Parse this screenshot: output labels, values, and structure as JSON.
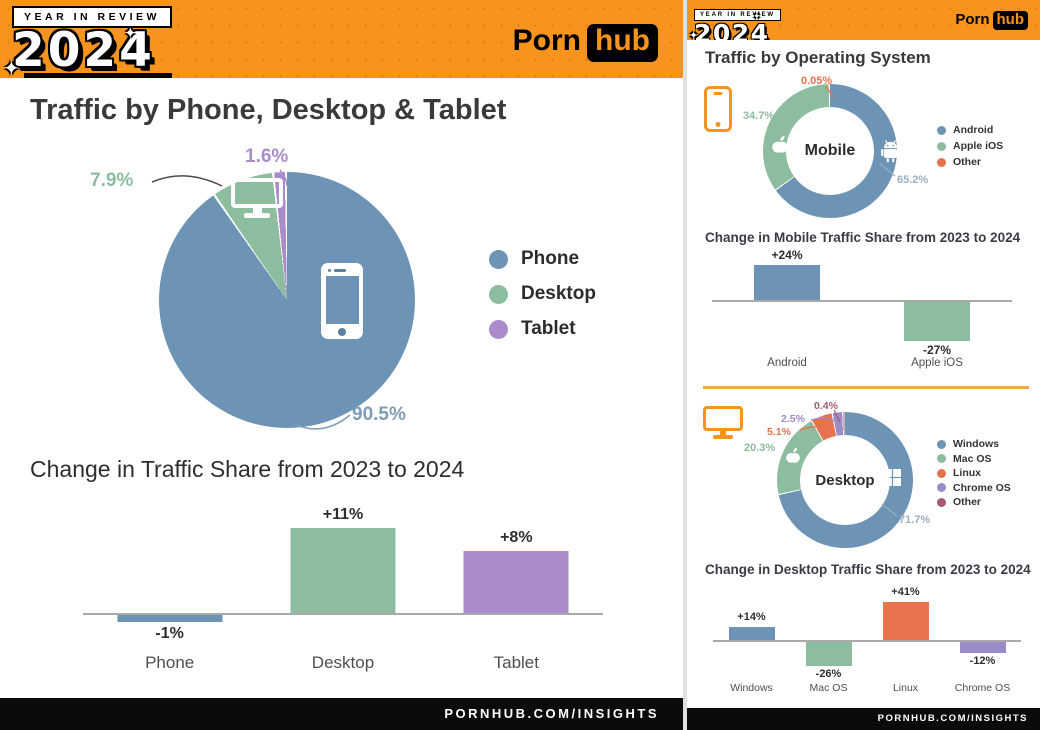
{
  "brand": {
    "year_badge": "YEAR IN REVIEW",
    "year": "2024",
    "logo_part1": "Porn",
    "logo_part2": "hub",
    "footer_url": "PORNHUB.COM/INSIGHTS"
  },
  "left_panel": {
    "title": "Traffic by Phone, Desktop & Tablet"
  },
  "right_panel": {
    "title": "Traffic by Operating System"
  },
  "colors": {
    "brand_orange": "#F7941E",
    "black": "#111111",
    "phone_blue": "#6E94B5",
    "desktop_green": "#8DBD9F",
    "tablet_purple": "#A98CC9",
    "linux_red": "#E8714E",
    "chromeos_purple": "#9A8CC7",
    "other_maroon": "#A55A72",
    "divider_orange": "#F0A64A"
  },
  "icons": {
    "left_pie_slice_icons": [
      "smartphone-icon",
      "monitor-icon"
    ],
    "mobile_section_icon": "smartphone-icon",
    "mobile_donut_icons": [
      "apple-logo-icon",
      "android-robot-icon"
    ],
    "desktop_section_icon": "monitor-icon",
    "desktop_donut_icons": [
      "apple-logo-icon",
      "windows-logo-icon"
    ]
  },
  "chart_data": [
    {
      "type": "pie",
      "title": "Traffic by Phone, Desktop & Tablet",
      "categories": [
        "Phone",
        "Desktop",
        "Tablet"
      ],
      "values": [
        90.5,
        7.9,
        1.6
      ],
      "display_values": [
        "90.5%",
        "7.9%",
        "1.6%"
      ],
      "colors": [
        "#6E94B5",
        "#8DBD9F",
        "#A98CC9"
      ],
      "legend_position": "right"
    },
    {
      "type": "bar",
      "title": "Change in Traffic Share from 2023 to 2024",
      "categories": [
        "Phone",
        "Desktop",
        "Tablet"
      ],
      "values": [
        -1,
        11,
        8
      ],
      "labels": [
        "-1%",
        "+11%",
        "+8%"
      ],
      "colors": [
        "#6E94B5",
        "#8DBD9F",
        "#A98CC9"
      ],
      "unit": "percent"
    },
    {
      "type": "pie",
      "variant": "donut",
      "center_label": "Mobile",
      "categories": [
        "Android",
        "Apple iOS",
        "Other"
      ],
      "values": [
        65.2,
        34.7,
        0.05
      ],
      "display_values": [
        "65.2%",
        "34.7%",
        "0.05%"
      ],
      "colors": [
        "#6E94B5",
        "#8DBD9F",
        "#E8714E"
      ],
      "legend_position": "right"
    },
    {
      "type": "bar",
      "title": "Change in Mobile Traffic Share from 2023 to 2024",
      "categories": [
        "Android",
        "Apple iOS"
      ],
      "values": [
        24,
        -27
      ],
      "labels": [
        "+24%",
        "-27%"
      ],
      "colors": [
        "#6E94B5",
        "#8DBD9F"
      ],
      "unit": "percent"
    },
    {
      "type": "pie",
      "variant": "donut",
      "center_label": "Desktop",
      "categories": [
        "Windows",
        "Mac OS",
        "Linux",
        "Chrome OS",
        "Other"
      ],
      "values": [
        71.7,
        20.3,
        5.1,
        2.5,
        0.4
      ],
      "display_values": [
        "71.7%",
        "20.3%",
        "5.1%",
        "2.5%",
        "0.4%"
      ],
      "colors": [
        "#6E94B5",
        "#8DBD9F",
        "#E8714E",
        "#9A8CC7",
        "#A55A72"
      ],
      "legend_position": "right"
    },
    {
      "type": "bar",
      "title": "Change in Desktop Traffic Share from 2023 to 2024",
      "categories": [
        "Windows",
        "Mac OS",
        "Linux",
        "Chrome OS"
      ],
      "values": [
        14,
        -26,
        41,
        -12
      ],
      "labels": [
        "+14%",
        "-26%",
        "+41%",
        "-12%"
      ],
      "colors": [
        "#6E94B5",
        "#8DBD9F",
        "#E8714E",
        "#9A8CC7"
      ],
      "unit": "percent"
    }
  ]
}
